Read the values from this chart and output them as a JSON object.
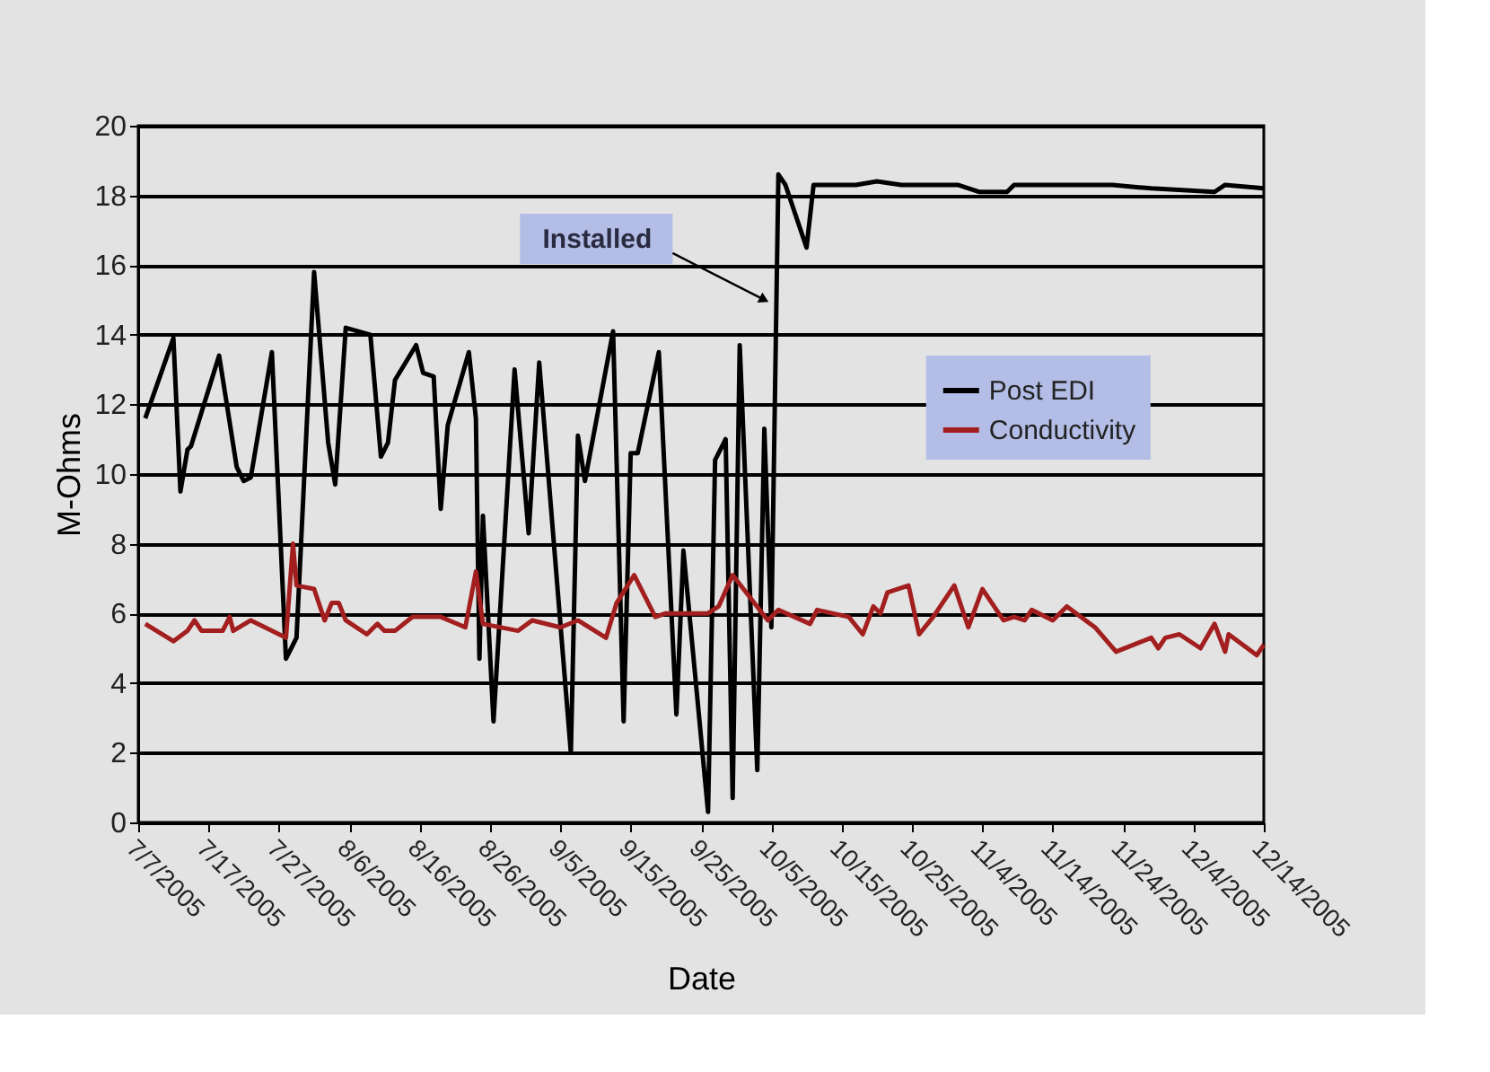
{
  "chart_data": {
    "type": "line",
    "xlabel": "Date",
    "ylabel": "M-Ohms",
    "ylim": [
      0,
      20
    ],
    "yticks": [
      0,
      2,
      4,
      6,
      8,
      10,
      12,
      14,
      16,
      18,
      20
    ],
    "xlim": [
      "2005-07-07",
      "2005-12-14"
    ],
    "xticks": [
      {
        "value": "2005-07-07",
        "label": "7/7/2005"
      },
      {
        "value": "2005-07-17",
        "label": "7/17/2005"
      },
      {
        "value": "2005-07-27",
        "label": "7/27/2005"
      },
      {
        "value": "2005-08-06",
        "label": "8/6/2005"
      },
      {
        "value": "2005-08-16",
        "label": "8/16/2005"
      },
      {
        "value": "2005-08-26",
        "label": "8/26/2005"
      },
      {
        "value": "2005-09-05",
        "label": "9/5/2005"
      },
      {
        "value": "2005-09-15",
        "label": "9/15/2005"
      },
      {
        "value": "2005-09-25",
        "label": "9/25/2005"
      },
      {
        "value": "2005-10-05",
        "label": "10/5/2005"
      },
      {
        "value": "2005-10-15",
        "label": "10/15/2005"
      },
      {
        "value": "2005-10-25",
        "label": "10/25/2005"
      },
      {
        "value": "2005-11-04",
        "label": "11/4/2005"
      },
      {
        "value": "2005-11-14",
        "label": "11/14/2005"
      },
      {
        "value": "2005-11-24",
        "label": "11/24/2005"
      },
      {
        "value": "2005-12-04",
        "label": "12/4/2005"
      },
      {
        "value": "2005-12-14",
        "label": "12/14/2005"
      }
    ],
    "grid": "y",
    "legend": "right",
    "marker": "none",
    "line_style": "solid",
    "annotations": [
      {
        "text": "Installed",
        "x": "2005-10-05",
        "y": 14.9
      }
    ],
    "series": [
      {
        "name": "Post EDI",
        "color": "#000000",
        "x": [
          "2005-07-08",
          "2005-07-12",
          "2005-07-13",
          "2005-07-14",
          "2005-07-14T12:00",
          "2005-07-18T12:00",
          "2005-07-21",
          "2005-07-22",
          "2005-07-23",
          "2005-07-26",
          "2005-07-28",
          "2005-07-29T12:00",
          "2005-08-01",
          "2005-08-03",
          "2005-08-04",
          "2005-08-05T12:00",
          "2005-08-09",
          "2005-08-10T12:00",
          "2005-08-11T12:00",
          "2005-08-12T12:00",
          "2005-08-15T12:00",
          "2005-08-16T12:00",
          "2005-08-18",
          "2005-08-19",
          "2005-08-20",
          "2005-08-23",
          "2005-08-24",
          "2005-08-24T12:00",
          "2005-08-25",
          "2005-08-26T12:00",
          "2005-08-29T12:00",
          "2005-08-31T12:00",
          "2005-09-02",
          "2005-09-06T12:00",
          "2005-09-07T12:00",
          "2005-09-08T12:00",
          "2005-09-12T12:00",
          "2005-09-14",
          "2005-09-15",
          "2005-09-16",
          "2005-09-19",
          "2005-09-21T12:00",
          "2005-09-22T12:00",
          "2005-09-26",
          "2005-09-27",
          "2005-09-28T12:00",
          "2005-09-29T12:00",
          "2005-09-30T12:00",
          "2005-10-03",
          "2005-10-04",
          "2005-10-05",
          "2005-10-06",
          "2005-10-07",
          "2005-10-10",
          "2005-10-11",
          "2005-10-17",
          "2005-10-20",
          "2005-10-23T12:00",
          "2005-10-31T12:00",
          "2005-11-03T12:00",
          "2005-11-07T12:00",
          "2005-11-08T12:00",
          "2005-11-14T12:00",
          "2005-11-22T12:00",
          "2005-11-28",
          "2005-12-07",
          "2005-12-08T12:00",
          "2005-12-14"
        ],
        "values": [
          11.6,
          13.9,
          9.5,
          10.7,
          10.8,
          13.4,
          10.2,
          9.8,
          9.9,
          13.5,
          4.7,
          5.3,
          15.8,
          10.9,
          9.7,
          14.2,
          14.0,
          10.5,
          10.9,
          12.7,
          13.7,
          12.9,
          12.8,
          9.0,
          11.4,
          13.5,
          11.6,
          4.7,
          8.8,
          2.9,
          13.0,
          8.3,
          13.2,
          2.0,
          11.1,
          9.8,
          14.1,
          2.9,
          10.6,
          10.6,
          13.5,
          3.1,
          7.8,
          0.3,
          10.4,
          11.0,
          0.7,
          13.7,
          1.5,
          11.3,
          5.6,
          18.6,
          18.3,
          16.5,
          18.3,
          18.3,
          18.4,
          18.3,
          18.3,
          18.1,
          18.1,
          18.3,
          18.3,
          18.3,
          18.2,
          18.1,
          18.3,
          18.2
        ]
      },
      {
        "name": "Conductivity",
        "color": "#a31f1f",
        "x": [
          "2005-07-08",
          "2005-07-12",
          "2005-07-14",
          "2005-07-15",
          "2005-07-16",
          "2005-07-19",
          "2005-07-20",
          "2005-07-20T12:00",
          "2005-07-23",
          "2005-07-28",
          "2005-07-29",
          "2005-07-29T12:00",
          "2005-08-01",
          "2005-08-02T12:00",
          "2005-08-03T12:00",
          "2005-08-04T12:00",
          "2005-08-05T12:00",
          "2005-08-08T12:00",
          "2005-08-10",
          "2005-08-11",
          "2005-08-12T12:00",
          "2005-08-15",
          "2005-08-19",
          "2005-08-22T12:00",
          "2005-08-24",
          "2005-08-25",
          "2005-08-30",
          "2005-09-01",
          "2005-09-05",
          "2005-09-07T12:00",
          "2005-09-11T12:00",
          "2005-09-13",
          "2005-09-15T12:00",
          "2005-09-18T12:00",
          "2005-09-20",
          "2005-09-26",
          "2005-09-27T12:00",
          "2005-09-29T12:00",
          "2005-10-04T12:00",
          "2005-10-06",
          "2005-10-10T12:00",
          "2005-10-11T12:00",
          "2005-10-16",
          "2005-10-18",
          "2005-10-19T12:00",
          "2005-10-20T12:00",
          "2005-10-21T12:00",
          "2005-10-24T12:00",
          "2005-10-26",
          "2005-10-28",
          "2005-10-31",
          "2005-11-02",
          "2005-11-04",
          "2005-11-07",
          "2005-11-08T12:00",
          "2005-11-10",
          "2005-11-11",
          "2005-11-14",
          "2005-11-16",
          "2005-11-20",
          "2005-11-23",
          "2005-11-28",
          "2005-11-29",
          "2005-11-30",
          "2005-12-02",
          "2005-12-05",
          "2005-12-07",
          "2005-12-08T12:00",
          "2005-12-09",
          "2005-12-13",
          "2005-12-14"
        ],
        "values": [
          5.7,
          5.2,
          5.5,
          5.8,
          5.5,
          5.5,
          5.9,
          5.5,
          5.8,
          5.3,
          8.0,
          6.8,
          6.7,
          5.8,
          6.3,
          6.3,
          5.8,
          5.4,
          5.7,
          5.5,
          5.5,
          5.9,
          5.9,
          5.6,
          7.2,
          5.7,
          5.5,
          5.8,
          5.6,
          5.8,
          5.3,
          6.3,
          7.1,
          5.9,
          6.0,
          6.0,
          6.2,
          7.1,
          5.8,
          6.1,
          5.7,
          6.1,
          5.9,
          5.4,
          6.2,
          6.0,
          6.6,
          6.8,
          5.4,
          5.9,
          6.8,
          5.6,
          6.7,
          5.8,
          5.9,
          5.8,
          6.1,
          5.8,
          6.2,
          5.6,
          4.9,
          5.3,
          5.0,
          5.3,
          5.4,
          5.0,
          5.7,
          4.9,
          5.4,
          4.8,
          5.1
        ]
      }
    ]
  }
}
